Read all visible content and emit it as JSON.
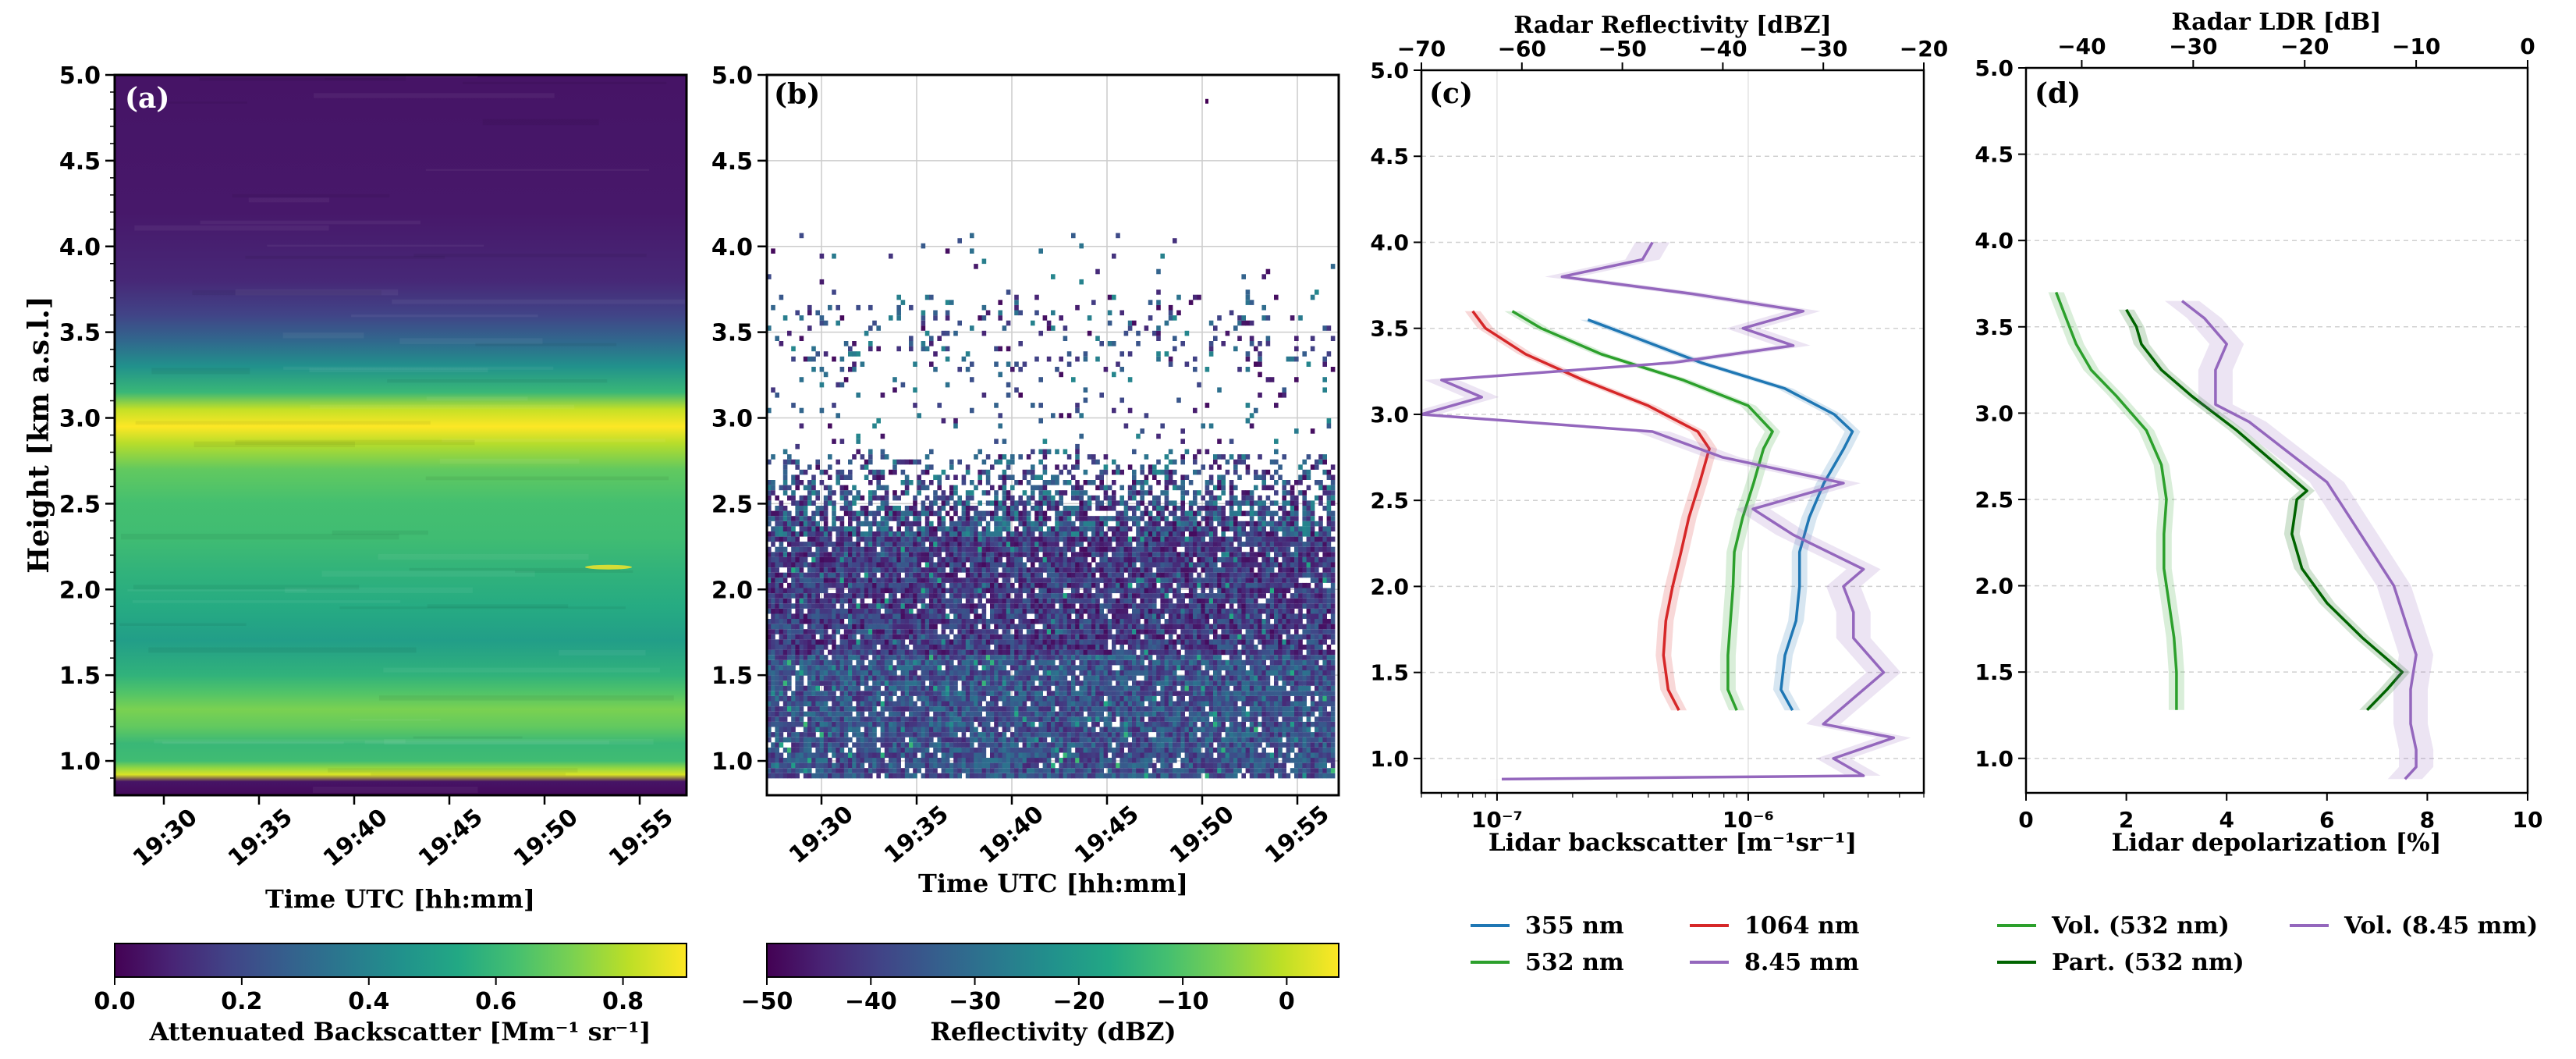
{
  "chart_data": [
    {
      "type": "heatmap",
      "panel": "(a)",
      "xlabel": "Time UTC [hh:mm]",
      "ylabel": "Height [km a.s.l.]",
      "xticks": [
        "19:30",
        "19:35",
        "19:40",
        "19:45",
        "19:50",
        "19:55"
      ],
      "yticks": [
        "1.0",
        "1.5",
        "2.0",
        "2.5",
        "3.0",
        "3.5",
        "4.0",
        "4.5",
        "5.0"
      ],
      "ylim": [
        0.8,
        5.0
      ],
      "colormap": "viridis",
      "colorbar": {
        "label": "Attenuated Backscatter [Mm⁻¹ sr⁻¹]",
        "range": [
          0.0,
          0.9
        ],
        "ticks": [
          "0.0",
          "0.2",
          "0.4",
          "0.6",
          "0.8"
        ]
      },
      "profile": {
        "heights": [
          0.8,
          0.88,
          0.92,
          0.96,
          1.0,
          1.1,
          1.2,
          1.3,
          1.4,
          1.5,
          1.7,
          1.9,
          2.1,
          2.3,
          2.5,
          2.7,
          2.85,
          2.95,
          3.05,
          3.15,
          3.3,
          3.45,
          3.6,
          3.8,
          4.2,
          5.0
        ],
        "values": [
          0.02,
          0.05,
          0.85,
          0.75,
          0.62,
          0.6,
          0.68,
          0.72,
          0.65,
          0.58,
          0.5,
          0.55,
          0.58,
          0.62,
          0.63,
          0.68,
          0.8,
          0.9,
          0.82,
          0.6,
          0.45,
          0.3,
          0.18,
          0.1,
          0.06,
          0.05
        ]
      }
    },
    {
      "type": "heatmap",
      "panel": "(b)",
      "xlabel": "Time UTC [hh:mm]",
      "xticks": [
        "19:30",
        "19:35",
        "19:40",
        "19:45",
        "19:50",
        "19:55"
      ],
      "yticks": [
        "1.0",
        "1.5",
        "2.0",
        "2.5",
        "3.0",
        "3.5",
        "4.0",
        "4.5",
        "5.0"
      ],
      "ylim": [
        0.8,
        5.0
      ],
      "colormap": "viridis",
      "grid": true,
      "colorbar": {
        "label": "Reflectivity (dBZ)",
        "range": [
          -50,
          5
        ],
        "ticks": [
          "−50",
          "−40",
          "−30",
          "−20",
          "−10",
          "0"
        ]
      }
    },
    {
      "type": "line",
      "panel": "(c)",
      "xlabel": "Lidar backscatter [m⁻¹sr⁻¹]",
      "xlabel_top": "Radar Reflectivity [dBZ]",
      "xscale": "log",
      "xlim": [
        5e-08,
        5e-06
      ],
      "xticks": [
        "10⁻⁷",
        "10⁻⁶"
      ],
      "xlim_top": [
        -70,
        -20
      ],
      "xticks_top": [
        "−70",
        "−60",
        "−50",
        "−40",
        "−30",
        "−20"
      ],
      "ylim": [
        0.8,
        5.0
      ],
      "yticks": [
        "1.0",
        "1.5",
        "2.0",
        "2.5",
        "3.0",
        "3.5",
        "4.0",
        "4.5",
        "5.0"
      ],
      "legend": "below",
      "series": [
        {
          "name": "355 nm",
          "color": "#1f77b4",
          "axis": "bottom",
          "y": [
            1.28,
            1.4,
            1.6,
            1.8,
            2.0,
            2.2,
            2.4,
            2.6,
            2.8,
            2.9,
            3.0,
            3.15,
            3.3,
            3.45,
            3.55
          ],
          "x": [
            1.5e-06,
            1.35e-06,
            1.4e-06,
            1.55e-06,
            1.6e-06,
            1.6e-06,
            1.75e-06,
            2e-06,
            2.4e-06,
            2.6e-06,
            2.2e-06,
            1.4e-06,
            6.5e-07,
            3.5e-07,
            2.3e-07
          ]
        },
        {
          "name": "532 nm",
          "color": "#2ca02c",
          "axis": "bottom",
          "y": [
            1.28,
            1.4,
            1.6,
            1.8,
            2.0,
            2.2,
            2.4,
            2.6,
            2.8,
            2.9,
            3.05,
            3.2,
            3.35,
            3.5,
            3.6
          ],
          "x": [
            9e-07,
            8.3e-07,
            8.3e-07,
            8.5e-07,
            8.7e-07,
            8.8e-07,
            9.5e-07,
            1.05e-06,
            1.15e-06,
            1.25e-06,
            1e-06,
            5.5e-07,
            2.6e-07,
            1.5e-07,
            1.15e-07
          ]
        },
        {
          "name": "1064 nm",
          "color": "#d62728",
          "axis": "bottom",
          "y": [
            1.28,
            1.4,
            1.6,
            1.8,
            2.0,
            2.2,
            2.4,
            2.6,
            2.8,
            2.9,
            3.05,
            3.2,
            3.35,
            3.5,
            3.6
          ],
          "x": [
            5.3e-07,
            4.8e-07,
            4.6e-07,
            4.7e-07,
            5e-07,
            5.4e-07,
            5.8e-07,
            6.4e-07,
            7e-07,
            6.3e-07,
            4e-07,
            2.2e-07,
            1.3e-07,
            9e-08,
            8e-08
          ]
        },
        {
          "name": "8.45 mm",
          "color": "#9467bd",
          "axis": "top",
          "y": [
            0.88,
            0.9,
            1.0,
            1.12,
            1.2,
            1.35,
            1.5,
            1.7,
            1.85,
            2.0,
            2.1,
            2.3,
            2.45,
            2.6,
            2.75,
            2.9,
            3.0,
            3.1,
            3.2,
            3.3,
            3.4,
            3.5,
            3.6,
            3.7,
            3.8,
            3.9,
            4.0
          ],
          "x": [
            -62,
            -26,
            -29,
            -23,
            -30,
            -27,
            -24,
            -27,
            -27,
            -28,
            -26,
            -33,
            -37,
            -28,
            -40,
            -47,
            -70,
            -64,
            -68,
            -45,
            -33,
            -38,
            -32,
            -43,
            -56,
            -48,
            -47
          ]
        }
      ]
    },
    {
      "type": "line",
      "panel": "(d)",
      "xlabel": "Lidar depolarization [%]",
      "xlabel_top": "Radar LDR [dB]",
      "xlim": [
        0,
        10
      ],
      "xticks": [
        "0",
        "2",
        "4",
        "6",
        "8",
        "10"
      ],
      "xlim_top": [
        -45,
        0
      ],
      "xticks_top": [
        "−40",
        "−30",
        "−20",
        "−10",
        "0"
      ],
      "ylim": [
        0.8,
        5.0
      ],
      "yticks": [
        "1.0",
        "1.5",
        "2.0",
        "2.5",
        "3.0",
        "3.5",
        "4.0",
        "4.5",
        "5.0"
      ],
      "legend": "below",
      "series": [
        {
          "name": "Vol. (532 nm)",
          "color": "#2ca02c",
          "axis": "bottom",
          "y": [
            1.28,
            1.5,
            1.7,
            1.9,
            2.1,
            2.3,
            2.5,
            2.7,
            2.9,
            3.1,
            3.25,
            3.4,
            3.55,
            3.7
          ],
          "x": [
            3.0,
            3.0,
            2.95,
            2.85,
            2.75,
            2.75,
            2.8,
            2.7,
            2.4,
            1.8,
            1.3,
            1.0,
            0.8,
            0.6
          ]
        },
        {
          "name": "Part. (532 nm)",
          "color": "#006400",
          "axis": "bottom",
          "y": [
            1.28,
            1.4,
            1.5,
            1.7,
            1.9,
            2.1,
            2.3,
            2.5,
            2.55,
            2.7,
            2.9,
            3.1,
            3.25,
            3.4,
            3.5,
            3.6
          ],
          "x": [
            6.8,
            7.2,
            7.5,
            6.7,
            6.0,
            5.5,
            5.3,
            5.4,
            5.6,
            5.0,
            4.2,
            3.3,
            2.7,
            2.3,
            2.2,
            2.0
          ]
        },
        {
          "name": "Vol. (8.45 mm)",
          "color": "#9467bd",
          "axis": "top",
          "y": [
            0.88,
            0.95,
            1.05,
            1.2,
            1.4,
            1.6,
            1.8,
            2.0,
            2.2,
            2.4,
            2.6,
            2.8,
            2.95,
            3.05,
            3.25,
            3.4,
            3.55,
            3.65
          ],
          "x": [
            -11,
            -10,
            -10,
            -10.5,
            -10.5,
            -10,
            -11,
            -12,
            -14,
            -16,
            -18,
            -22,
            -25,
            -28,
            -28,
            -27,
            -29,
            -31
          ]
        }
      ]
    }
  ],
  "labels": {
    "ylabel": "Height [km a.s.l.]",
    "panel_a": "(a)",
    "panel_b": "(b)",
    "panel_c": "(c)",
    "panel_d": "(d)",
    "xlabel_time": "Time UTC [hh:mm]",
    "cbar_a": "Attenuated Backscatter [Mm⁻¹ sr⁻¹]",
    "cbar_b": "Reflectivity (dBZ)",
    "c_top": "Radar Reflectivity [dBZ]",
    "c_bottom": "Lidar backscatter [m⁻¹sr⁻¹]",
    "d_top": "Radar LDR [dB]",
    "d_bottom": "Lidar depolarization [%]"
  }
}
